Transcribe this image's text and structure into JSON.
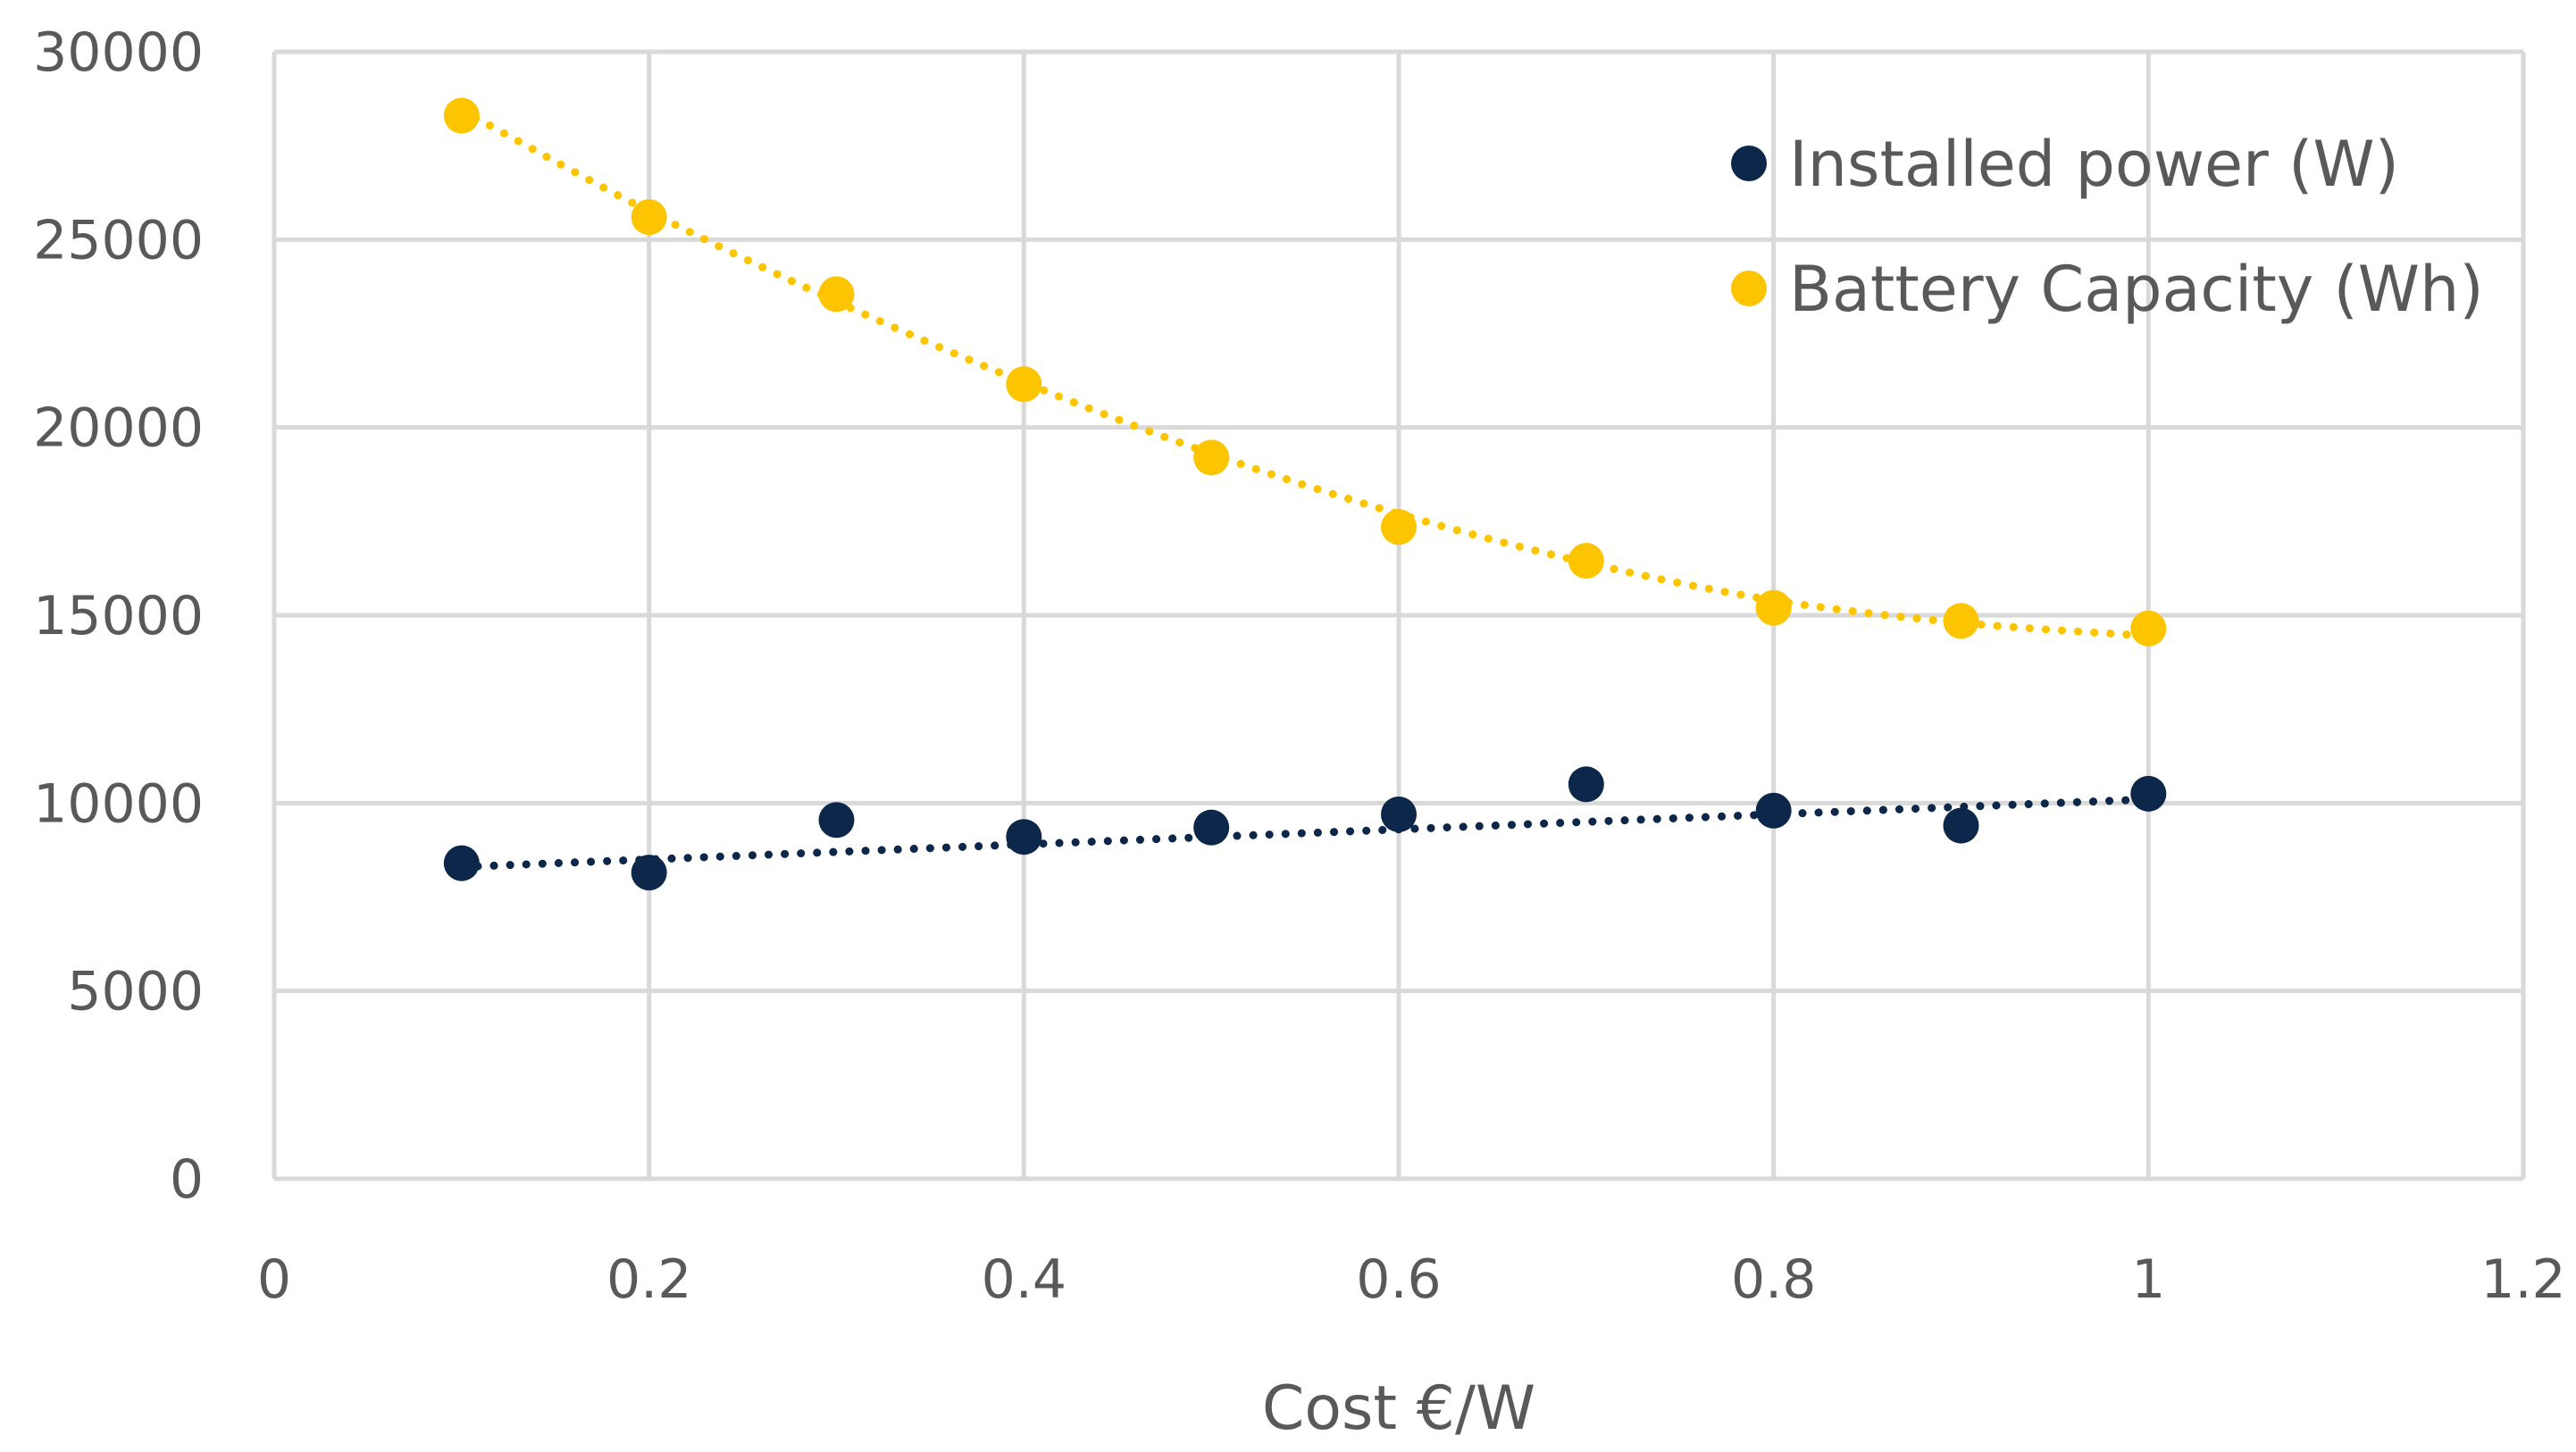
{
  "chart_data": {
    "type": "scatter",
    "title": "",
    "xlabel": "Cost €/W",
    "ylabel": "",
    "xlim": [
      0,
      1.2
    ],
    "ylim": [
      0,
      30000
    ],
    "x_ticks": [
      0,
      0.2,
      0.4,
      0.6,
      0.8,
      1,
      1.2
    ],
    "x_tick_labels": [
      "0",
      "0.2",
      "0.4",
      "0.6",
      "0.8",
      "1",
      "1.2"
    ],
    "y_ticks": [
      0,
      5000,
      10000,
      15000,
      20000,
      25000,
      30000
    ],
    "y_tick_labels": [
      "0",
      "5000",
      "10000",
      "15000",
      "20000",
      "25000",
      "30000"
    ],
    "grid": true,
    "legend_position": "top-right",
    "series": [
      {
        "name": "Installed power (W)",
        "color": "#0c2749",
        "trendline": "linear dotted",
        "x": [
          0.1,
          0.2,
          0.3,
          0.4,
          0.5,
          0.6,
          0.7,
          0.8,
          0.9,
          1.0
        ],
        "y": [
          8400,
          8150,
          9550,
          9100,
          9350,
          9700,
          10500,
          9800,
          9400,
          10250
        ],
        "trend_y": [
          8300,
          10100
        ]
      },
      {
        "name": "Battery Capacity (Wh)",
        "color": "#fdc400",
        "trendline": "polynomial dotted",
        "x": [
          0.1,
          0.2,
          0.3,
          0.4,
          0.5,
          0.6,
          0.7,
          0.8,
          0.9,
          1.0
        ],
        "y": [
          28300,
          25600,
          23550,
          21150,
          19200,
          17350,
          16450,
          15200,
          14850,
          14650
        ],
        "trend_y": [
          28450,
          25750,
          23350,
          21200,
          19300,
          17700,
          16400,
          15400,
          14800,
          14450
        ]
      }
    ]
  }
}
